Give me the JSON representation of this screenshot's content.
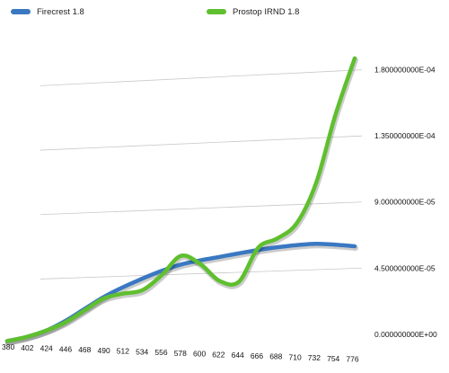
{
  "chart_data": {
    "type": "line",
    "title": "",
    "xlabel": "",
    "ylabel": "",
    "x": [
      380,
      402,
      424,
      446,
      468,
      490,
      512,
      534,
      556,
      578,
      600,
      622,
      644,
      666,
      688,
      710,
      732,
      754,
      776
    ],
    "ylim": [
      0,
      0.00018
    ],
    "y_tick_labels": [
      "0.000000000E+00",
      "4.500000000E-05",
      "9.000000000E-05",
      "1.350000000E-04",
      "1.800000000E-04"
    ],
    "y_ticks": [
      0,
      4.5e-05,
      9e-05,
      0.000135,
      0.00018
    ],
    "grid": true,
    "legend_position": "top",
    "series": [
      {
        "name": "Firecrest 1.8",
        "color": "#3a78c2",
        "values": [
          1e-06,
          3.5e-06,
          7.5e-06,
          1.4e-05,
          2.2e-05,
          3e-05,
          3.65e-05,
          4.2e-05,
          4.7e-05,
          5.1e-05,
          5.35e-05,
          5.55e-05,
          5.75e-05,
          5.95e-05,
          6.1e-05,
          6.2e-05,
          6.25e-05,
          6.15e-05,
          6e-05
        ]
      },
      {
        "name": "Prostop IRND 1.8",
        "color": "#5fbf2f",
        "values": [
          1e-06,
          3.5e-06,
          7.5e-06,
          1.3e-05,
          2.1e-05,
          2.9e-05,
          3.2e-05,
          3.4e-05,
          4.4e-05,
          5.7e-05,
          5.1e-05,
          3.9e-05,
          3.8e-05,
          6.1e-05,
          6.7e-05,
          7.7e-05,
          0.000104,
          0.00015,
          0.000188
        ]
      }
    ]
  }
}
